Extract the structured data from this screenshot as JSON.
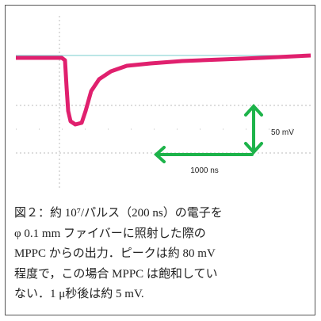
{
  "figure": {
    "vertical_arrow_label": "50 mV",
    "horizontal_arrow_label": "1000 ns"
  },
  "caption": {
    "lines": [
      "図２：約 10⁷/パルス（200 ns）の電子を",
      "φ 0.1 mm ファイバーに照射した際の",
      "MPPC からの出力．ピークは約 80 mV",
      "程度で，この場合 MPPC は飽和してい",
      "ない．1 μ秒後は約 5 mV."
    ]
  }
}
